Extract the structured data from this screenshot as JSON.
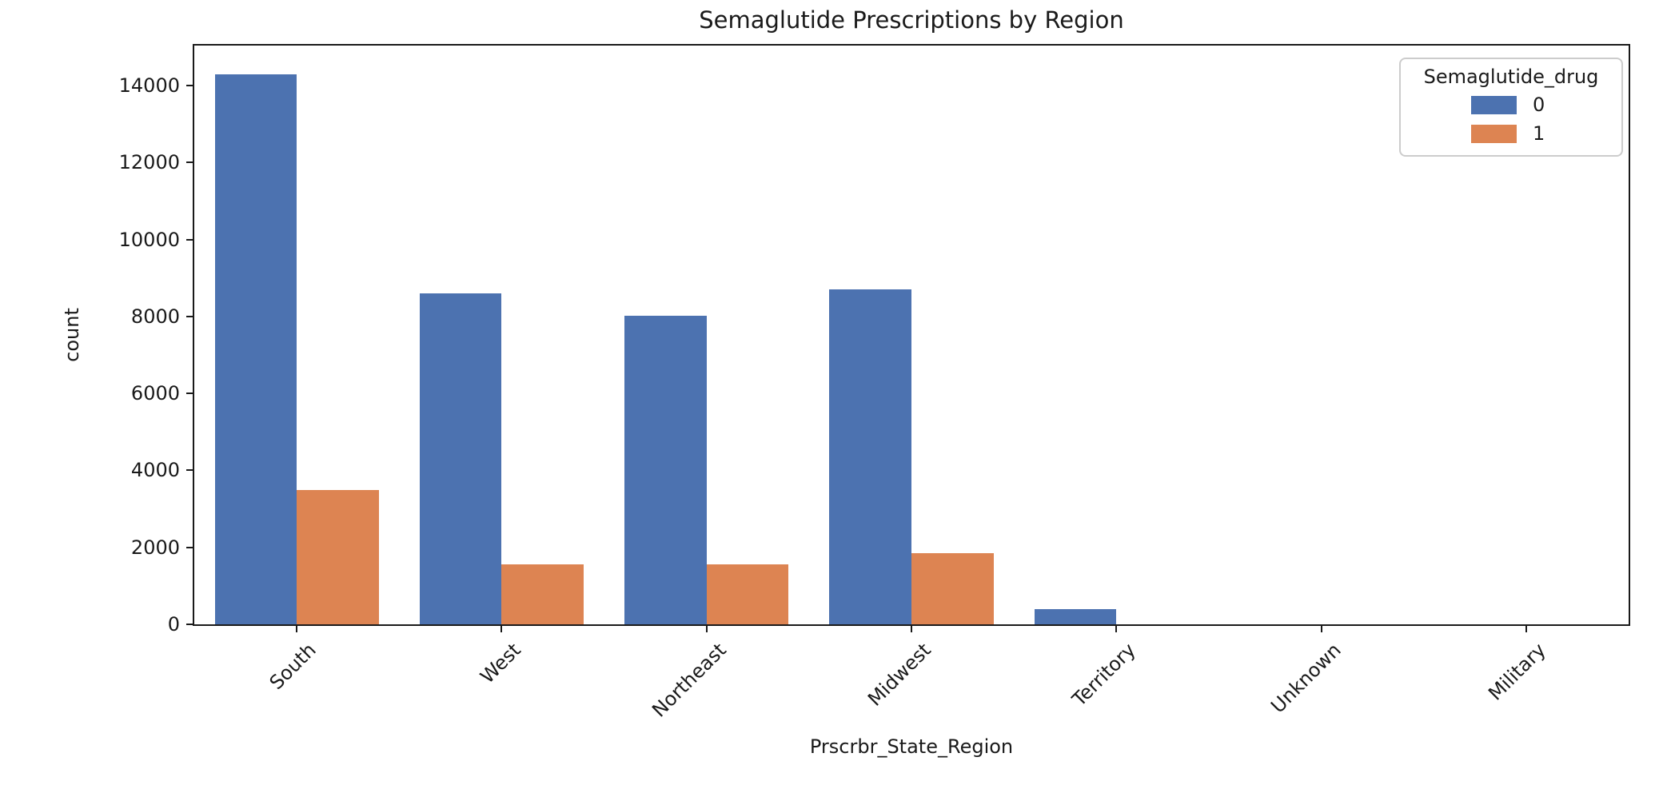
{
  "chart_data": {
    "type": "bar",
    "title": "Semaglutide Prescriptions by Region",
    "xlabel": "Prscrbr_State_Region",
    "ylabel": "count",
    "categories": [
      "South",
      "West",
      "Northeast",
      "Midwest",
      "Territory",
      "Unknown",
      "Military"
    ],
    "series": [
      {
        "name": "0",
        "color": "#4C72B0",
        "values": [
          14300,
          8600,
          8020,
          8700,
          400,
          0,
          0
        ]
      },
      {
        "name": "1",
        "color": "#DD8452",
        "values": [
          3490,
          1560,
          1560,
          1850,
          0,
          0,
          0
        ]
      }
    ],
    "yticks": [
      0,
      2000,
      4000,
      6000,
      8000,
      10000,
      12000,
      14000
    ],
    "ylim": [
      0,
      15040
    ],
    "grid": false,
    "x_tick_rotation": 45,
    "legend": {
      "title": "Semaglutide_drug",
      "position": "upper right",
      "entries": [
        "0",
        "1"
      ]
    }
  }
}
